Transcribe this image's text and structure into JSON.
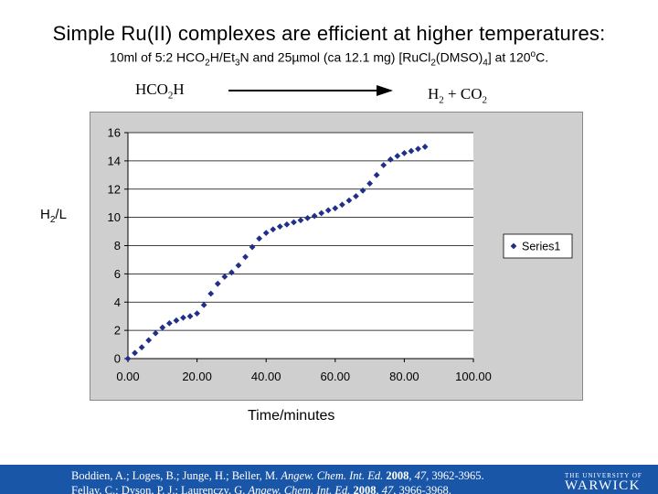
{
  "slide": {
    "title": "Simple Ru(II) complexes are efficient at higher temperatures:",
    "subtitle": {
      "p1": "10ml of 5:2 HCO",
      "s1": "2",
      "p2": "H/Et",
      "s2": "3",
      "p3": "N and 25µmol (ca 12.1 mg) [RuCl",
      "s3": "2",
      "p4": "(DMSO)",
      "s4": "4",
      "p5": "] at 120",
      "sup": "o",
      "p6": "C."
    },
    "reaction": {
      "reactant_a": "HCO",
      "reactant_sub": "2",
      "reactant_b": "H",
      "product_a": "H",
      "product_sub1": "2",
      "product_b": " + CO",
      "product_sub2": "2"
    },
    "ylabel": {
      "main": "H",
      "sub": "2",
      "rest": "/L"
    },
    "xlabel": "Time/minutes",
    "footer": {
      "ref1_authors": "Boddien, A.; Loges, B.; Junge, H.; Beller, M. ",
      "ref1_journal": "Angew. Chem. Int. Ed.",
      "ref1_year": " 2008",
      "ref1_vol": ", 47",
      "ref1_pages": ", 3962-3965.",
      "ref2_authors": "Fellay, C.; Dyson, P. J.; Laurenczy, G. ",
      "ref2_journal": "Angew. Chem. Int. Ed.",
      "ref2_year": " 2008",
      "ref2_vol": ", 47",
      "ref2_pages": ", 3966-3968.",
      "uni_small": "THE UNIVERSITY OF",
      "uni_big": "WARWICK"
    }
  },
  "chart_data": {
    "type": "scatter",
    "title": "",
    "xlabel": "Time/minutes",
    "ylabel": "H2/L",
    "xlim": [
      0,
      100
    ],
    "ylim": [
      0,
      16
    ],
    "x_ticks": [
      "0.00",
      "20.00",
      "40.00",
      "60.00",
      "80.00",
      "100.00"
    ],
    "y_ticks": [
      "0",
      "2",
      "4",
      "6",
      "8",
      "10",
      "12",
      "14",
      "16"
    ],
    "grid": "horizontal",
    "legend_position": "right",
    "series": [
      {
        "name": "Series1",
        "color": "#1f2f8a",
        "x": [
          0,
          2,
          4,
          6,
          8,
          10,
          12,
          14,
          16,
          18,
          20,
          22,
          24,
          26,
          28,
          30,
          32,
          34,
          36,
          38,
          40,
          42,
          44,
          46,
          48,
          50,
          52,
          54,
          56,
          58,
          60,
          62,
          64,
          66,
          68,
          70,
          72,
          74,
          76,
          78,
          80,
          82,
          84,
          86
        ],
        "y": [
          0,
          0.4,
          0.8,
          1.3,
          1.8,
          2.2,
          2.5,
          2.7,
          2.9,
          3.0,
          3.2,
          3.8,
          4.6,
          5.3,
          5.8,
          6.1,
          6.6,
          7.2,
          7.9,
          8.5,
          8.9,
          9.15,
          9.35,
          9.5,
          9.65,
          9.8,
          9.95,
          10.1,
          10.3,
          10.5,
          10.65,
          10.9,
          11.2,
          11.5,
          11.9,
          12.4,
          13.0,
          13.7,
          14.1,
          14.35,
          14.55,
          14.7,
          14.85,
          15.0
        ]
      }
    ]
  }
}
